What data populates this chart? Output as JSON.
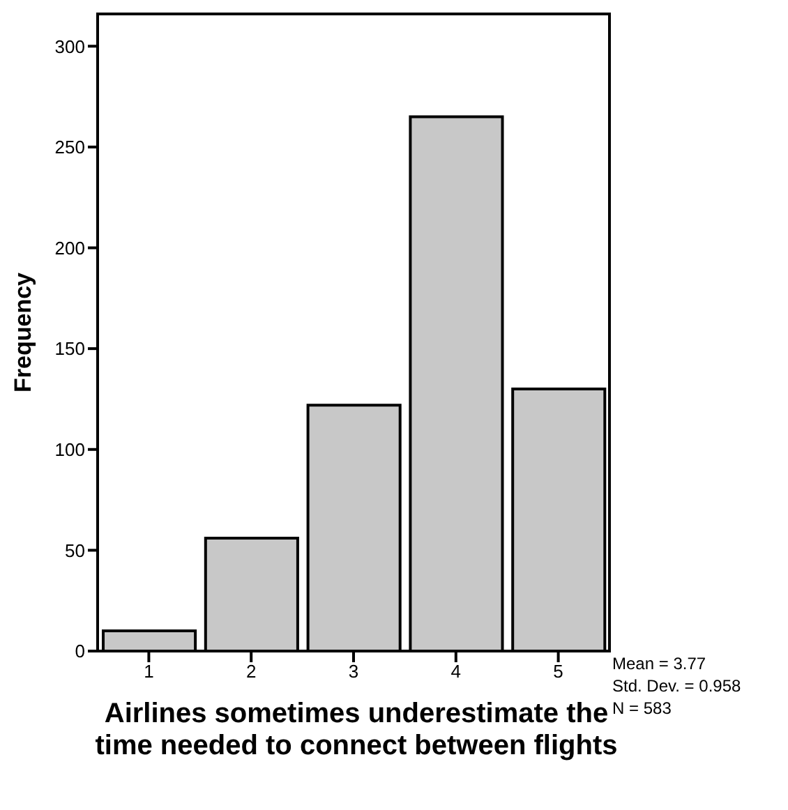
{
  "chart_data": {
    "type": "histogram",
    "xlabel": "Airlines sometimes underestimate the time needed to connect between flights",
    "ylabel": "Frequency",
    "bins": [
      0.5,
      1.5,
      2.5,
      3.5,
      4.5,
      5.5
    ],
    "values": [
      10,
      56,
      122,
      265,
      130
    ],
    "color": "#c8c8c8",
    "xlim": [
      0.5,
      5.5
    ],
    "xticks": [
      1,
      2,
      3,
      4,
      5
    ],
    "ylim": [
      0,
      316
    ],
    "yticks": [
      0,
      50,
      100,
      150,
      200,
      250,
      300
    ],
    "annotations": [
      "Mean = 3.77",
      "Std. Dev. = 0.958",
      "N = 583"
    ],
    "grid": false,
    "legend": false
  }
}
